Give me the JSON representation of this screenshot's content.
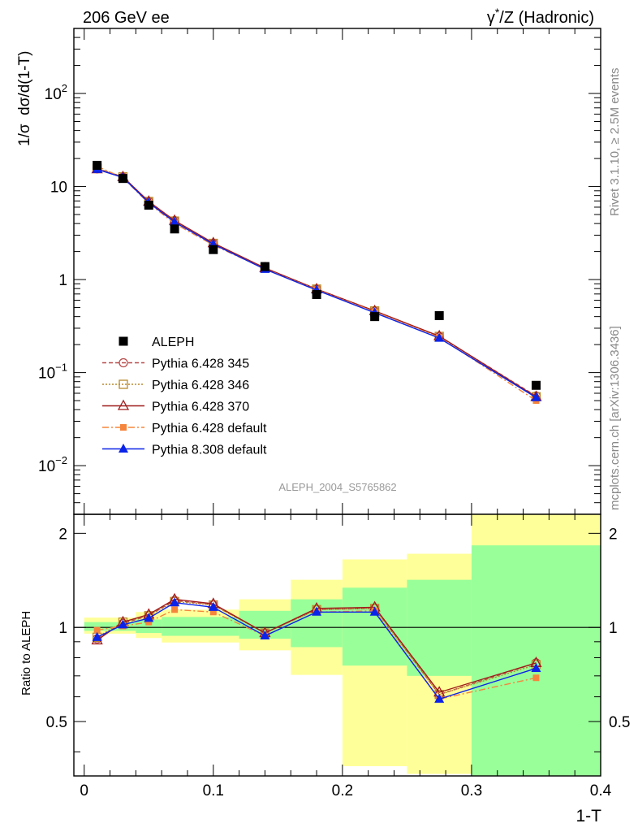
{
  "header": {
    "left": "206 GeV ee",
    "right_prefix": "γ",
    "right_sup": "*",
    "right_suffix": "/Z (Hadronic)"
  },
  "side_labels": {
    "rivet": "Rivet 3.1.10, ≥ 2.5M events",
    "mcplots": "mcplots.cern.ch [arXiv:1306.3436]"
  },
  "analysis_tag": "ALEPH_2004_S5765862",
  "colors": {
    "data": "#000000",
    "p345": "#b84a4a",
    "p346": "#b88a2e",
    "p370": "#a01b1b",
    "p6def": "#f5853c",
    "p8def": "#0b23e8",
    "band_outer": "#ffff99",
    "band_inner": "#99ff99"
  },
  "chart_data": [
    {
      "type": "line",
      "panel": "main",
      "ylabel": "1/σ  dσ/d(1-T)",
      "xlim": [
        -0.008,
        0.4
      ],
      "ylim": [
        0.003,
        500
      ],
      "yscale": "log",
      "y_ticks": [
        {
          "base": "10",
          "exp": "−2",
          "value": 0.01
        },
        {
          "base": "10",
          "exp": "−1",
          "value": 0.1
        },
        {
          "base": "1",
          "exp": "",
          "value": 1
        },
        {
          "base": "10",
          "exp": "",
          "value": 10
        },
        {
          "base": "10",
          "exp": "2",
          "value": 100
        }
      ],
      "x": [
        0.01,
        0.03,
        0.05,
        0.07,
        0.1,
        0.14,
        0.18,
        0.225,
        0.275,
        0.35
      ],
      "series": [
        {
          "name": "ALEPH",
          "key": "data",
          "marker": "square",
          "values": [
            16.9,
            12.2,
            6.3,
            3.5,
            2.1,
            1.38,
            0.69,
            0.4,
            0.41,
            0.073
          ]
        },
        {
          "name": "Pythia 6.428 345",
          "key": "p345",
          "marker": "circle",
          "dash": "5,3",
          "values": [
            15.5,
            12.6,
            6.9,
            4.3,
            2.45,
            1.33,
            0.79,
            0.46,
            0.245,
            0.056
          ]
        },
        {
          "name": "Pythia 6.428 346",
          "key": "p346",
          "marker": "square-open",
          "dash": "2,2",
          "values": [
            15.7,
            12.7,
            6.9,
            4.25,
            2.45,
            1.33,
            0.79,
            0.46,
            0.245,
            0.055
          ]
        },
        {
          "name": "Pythia 6.428 370",
          "key": "p370",
          "marker": "triangle-open",
          "dash": "",
          "values": [
            15.4,
            12.7,
            6.9,
            4.3,
            2.47,
            1.33,
            0.79,
            0.46,
            0.247,
            0.055
          ]
        },
        {
          "name": "Pythia 6.428 default",
          "key": "p6def",
          "marker": "square-small",
          "dash": "8,3,2,3",
          "values": [
            16.5,
            12.4,
            6.6,
            4.0,
            2.35,
            1.3,
            0.78,
            0.45,
            0.24,
            0.05
          ]
        },
        {
          "name": "Pythia 8.308 default",
          "key": "p8def",
          "marker": "triangle",
          "dash": "",
          "values": [
            15.3,
            12.5,
            6.7,
            4.15,
            2.4,
            1.29,
            0.77,
            0.44,
            0.235,
            0.054
          ]
        }
      ]
    },
    {
      "type": "line",
      "panel": "ratio",
      "xlabel": "1-T",
      "ylabel": "Ratio to ALEPH",
      "xlim": [
        -0.008,
        0.4
      ],
      "ylim": [
        0.335,
        2.3
      ],
      "yscale": "log",
      "y_ticks": [
        0.5,
        1,
        2
      ],
      "x_ticks": [
        0,
        0.1,
        0.2,
        0.3,
        0.4
      ],
      "x_tick_labels": [
        "0",
        "0.1",
        "0.2",
        "0.3",
        "0.4"
      ],
      "bands": {
        "edges": [
          0.0,
          0.02,
          0.04,
          0.06,
          0.08,
          0.12,
          0.16,
          0.2,
          0.25,
          0.3,
          0.4
        ],
        "outer_low": [
          0.955,
          0.955,
          0.925,
          0.895,
          0.895,
          0.845,
          0.705,
          0.36,
          0.34,
          0.33
        ],
        "outer_high": [
          1.075,
          1.075,
          1.12,
          1.14,
          1.14,
          1.23,
          1.42,
          1.65,
          1.72,
          2.4
        ],
        "inner_low": [
          0.975,
          0.975,
          0.96,
          0.94,
          0.94,
          0.92,
          0.865,
          0.755,
          0.7,
          0.33
        ],
        "inner_high": [
          1.04,
          1.04,
          1.06,
          1.08,
          1.08,
          1.13,
          1.23,
          1.34,
          1.42,
          1.83
        ]
      },
      "series": [
        {
          "name": "Pythia 6.428 345",
          "key": "p345",
          "marker": "circle",
          "dash": "5,3",
          "values": [
            0.92,
            1.03,
            1.09,
            1.22,
            1.18,
            0.96,
            1.14,
            1.15,
            0.61,
            0.77
          ]
        },
        {
          "name": "Pythia 6.428 346",
          "key": "p346",
          "marker": "square-open",
          "dash": "2,2",
          "values": [
            0.93,
            1.04,
            1.09,
            1.21,
            1.18,
            0.96,
            1.14,
            1.15,
            0.61,
            0.76
          ]
        },
        {
          "name": "Pythia 6.428 370",
          "key": "p370",
          "marker": "triangle-open",
          "dash": "",
          "values": [
            0.91,
            1.04,
            1.1,
            1.23,
            1.19,
            0.96,
            1.15,
            1.16,
            0.62,
            0.77
          ]
        },
        {
          "name": "Pythia 6.428 default",
          "key": "p6def",
          "marker": "square-small",
          "dash": "8,3,2,3",
          "values": [
            0.98,
            1.01,
            1.04,
            1.14,
            1.12,
            0.94,
            1.12,
            1.13,
            0.59,
            0.69
          ]
        },
        {
          "name": "Pythia 8.308 default",
          "key": "p8def",
          "marker": "triangle",
          "dash": "",
          "values": [
            0.93,
            1.02,
            1.07,
            1.2,
            1.16,
            0.94,
            1.12,
            1.12,
            0.59,
            0.74
          ]
        }
      ]
    }
  ]
}
